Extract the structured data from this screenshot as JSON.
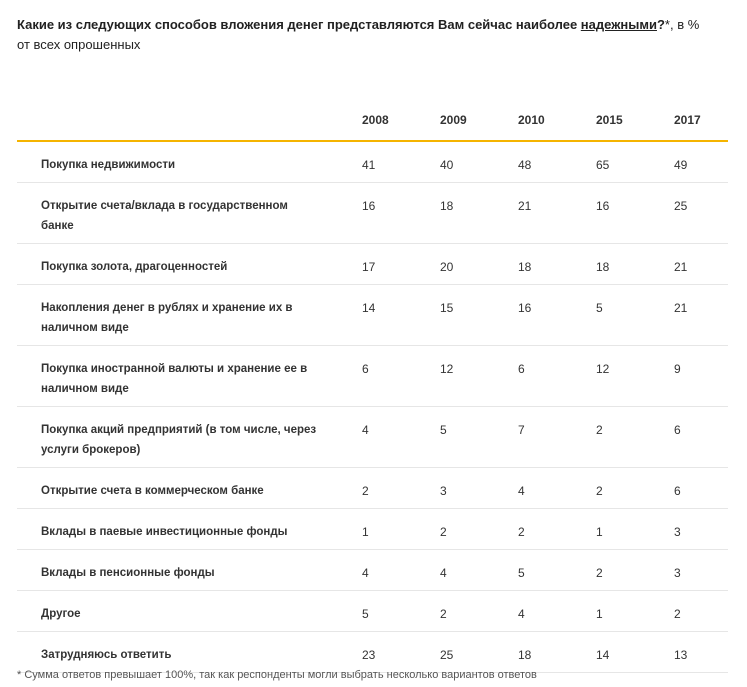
{
  "title": {
    "question_start": "Какие из следующих способов вложения денег представляются Вам сейчас наиболее ",
    "question_emph": "надежными",
    "question_end": "?",
    "suffix": "*, в %",
    "line2": "от всех опрошенных"
  },
  "table": {
    "years": [
      "2008",
      "2009",
      "2010",
      "2015",
      "2017"
    ],
    "rows": [
      {
        "label": "Покупка недвижимости",
        "values": [
          "41",
          "40",
          "48",
          "65",
          "49"
        ]
      },
      {
        "label": "Открытие счета/вклада в государственном банке",
        "values": [
          "16",
          "18",
          "21",
          "16",
          "25"
        ]
      },
      {
        "label": "Покупка золота, драгоценностей",
        "values": [
          "17",
          "20",
          "18",
          "18",
          "21"
        ]
      },
      {
        "label": "Накопления денег в рублях и хранение их в наличном виде",
        "values": [
          "14",
          "15",
          "16",
          "5",
          "21"
        ]
      },
      {
        "label": "Покупка иностранной валюты и хранение ее в наличном виде",
        "values": [
          "6",
          "12",
          "6",
          "12",
          "9"
        ]
      },
      {
        "label": "Покупка акций предприятий (в том числе, через услуги брокеров)",
        "values": [
          "4",
          "5",
          "7",
          "2",
          "6"
        ]
      },
      {
        "label": "Открытие счета в коммерческом банке",
        "values": [
          "2",
          "3",
          "4",
          "2",
          "6"
        ]
      },
      {
        "label": "Вклады в паевые инвестиционные фонды",
        "values": [
          "1",
          "2",
          "2",
          "1",
          "3"
        ]
      },
      {
        "label": "Вклады в пенсионные фонды",
        "values": [
          "4",
          "4",
          "5",
          "2",
          "3"
        ]
      },
      {
        "label": "Другое",
        "values": [
          "5",
          "2",
          "4",
          "1",
          "2"
        ]
      },
      {
        "label": "Затрудняюсь ответить",
        "values": [
          "23",
          "25",
          "18",
          "14",
          "13"
        ]
      }
    ]
  },
  "footnote": "* Сумма ответов превышает 100%, так как респонденты могли выбрать несколько вариантов ответов"
}
